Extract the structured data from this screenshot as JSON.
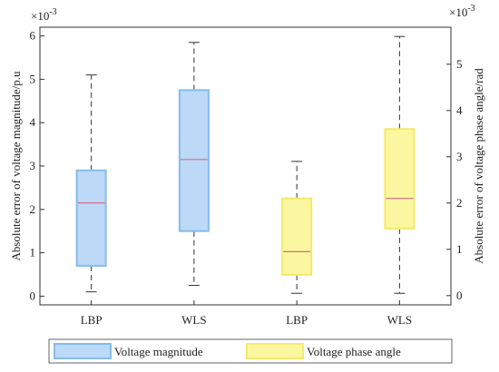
{
  "chart_data": {
    "type": "box",
    "categories": [
      "LBP",
      "WLS",
      "LBP",
      "WLS"
    ],
    "ylabel_left": "Absolute error of voltage magnitude/p.u",
    "ylabel_right": "Absolute error of voltage phase angle/rad",
    "left_exponent_base": "×10",
    "left_exponent_power": "-3",
    "right_exponent_base": "×10",
    "right_exponent_power": "-3",
    "ylim_left": [
      -0.2,
      6.2
    ],
    "ylim_right": [
      -0.2,
      5.8
    ],
    "left_ticks": [
      "0",
      "1",
      "2",
      "3",
      "4",
      "5",
      "6"
    ],
    "right_ticks": [
      "0",
      "1",
      "2",
      "3",
      "4",
      "5"
    ],
    "grid": false,
    "legend_position": "bottom",
    "series": [
      {
        "name": "Voltage magnitude",
        "axis": "left",
        "color": "#bcd9f7",
        "edge_color": "#85bcec",
        "median_color": "#d46a8a",
        "boxes": [
          {
            "category_index": 0,
            "whisker_low": 0.1,
            "q1": 0.7,
            "median": 2.15,
            "q3": 2.9,
            "whisker_high": 5.1
          },
          {
            "category_index": 1,
            "whisker_low": 0.25,
            "q1": 1.5,
            "median": 3.15,
            "q3": 4.75,
            "whisker_high": 5.85
          }
        ]
      },
      {
        "name": "Voltage phase angle",
        "axis": "right",
        "color": "#fbf7a0",
        "edge_color": "#f3ea6c",
        "median_color": "#d46a8a",
        "boxes": [
          {
            "category_index": 2,
            "whisker_low": 0.05,
            "q1": 0.45,
            "median": 0.95,
            "q3": 2.1,
            "whisker_high": 2.9
          },
          {
            "category_index": 3,
            "whisker_low": 0.05,
            "q1": 1.45,
            "median": 2.1,
            "q3": 3.6,
            "whisker_high": 5.6
          }
        ]
      }
    ]
  }
}
